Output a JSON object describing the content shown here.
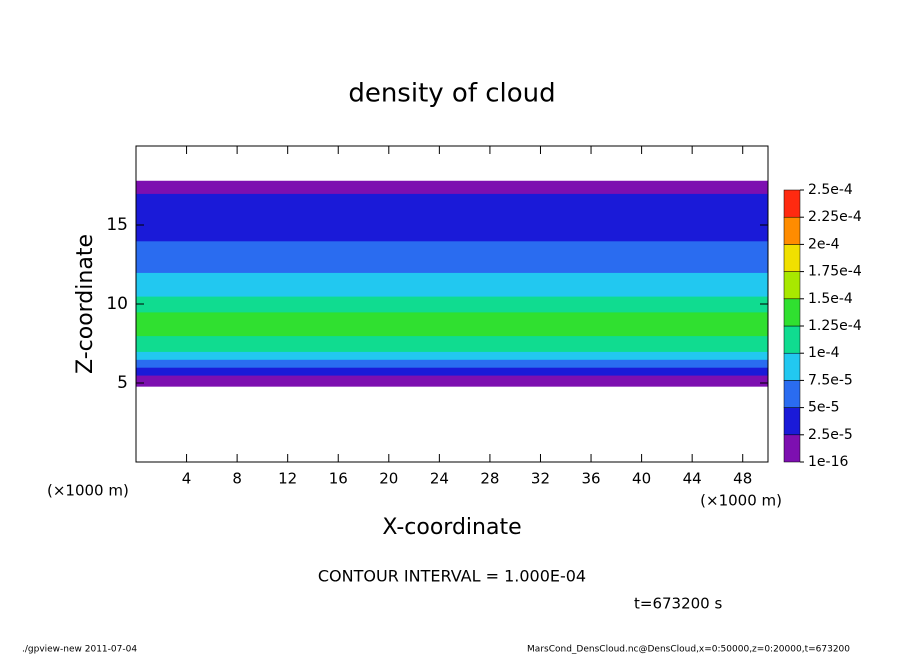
{
  "chart_data": {
    "type": "heatmap-profile",
    "title": "density of cloud",
    "x_label": "X-coordinate",
    "y_label": "Z-coordinate",
    "x_unit": "(×1000 m)",
    "contour_note": "CONTOUR INTERVAL = 1.000E-04",
    "time_note": "t=673200 s",
    "footer_left": "./gpview-new  2011-07-04",
    "footer_right": "MarsCond_DensCloud.nc@DensCloud,x=0:50000,z=0:20000,t=673200",
    "xlim": [
      0,
      50
    ],
    "xticks": [
      4,
      8,
      12,
      16,
      20,
      24,
      28,
      32,
      36,
      40,
      44,
      48
    ],
    "ylim": [
      0,
      20
    ],
    "yticks": [
      5,
      10,
      15
    ],
    "z_bins": [
      4.8,
      5.5,
      6.0,
      6.5,
      7.0,
      8.0,
      9.5,
      10.5,
      12,
      14,
      16,
      17,
      17.8
    ],
    "values": [
      1e-05,
      3e-05,
      6e-05,
      8.5e-05,
      0.00011,
      0.000135,
      0.00011,
      8e-05,
      6e-05,
      4e-05,
      3e-05,
      1e-05
    ],
    "color_levels": [
      {
        "value": 1e-16,
        "label": "1e-16"
      },
      {
        "value": 2.5e-05,
        "label": "2.5e-5"
      },
      {
        "value": 5e-05,
        "label": "5e-5"
      },
      {
        "value": 7.5e-05,
        "label": "7.5e-5"
      },
      {
        "value": 0.0001,
        "label": "1e-4"
      },
      {
        "value": 0.000125,
        "label": "1.25e-4"
      },
      {
        "value": 0.00015,
        "label": "1.5e-4"
      },
      {
        "value": 0.000175,
        "label": "1.75e-4"
      },
      {
        "value": 0.0002,
        "label": "2e-4"
      },
      {
        "value": 0.000225,
        "label": "2.25e-4"
      },
      {
        "value": 0.00025,
        "label": "2.5e-4"
      }
    ],
    "colors": [
      "#7d0fb0",
      "#1a1ad8",
      "#2a6cf0",
      "#22c8f0",
      "#10dc90",
      "#30e030",
      "#a8e800",
      "#f0e000",
      "#ff8c00",
      "#ff2a10",
      "#ff9aa0"
    ]
  }
}
